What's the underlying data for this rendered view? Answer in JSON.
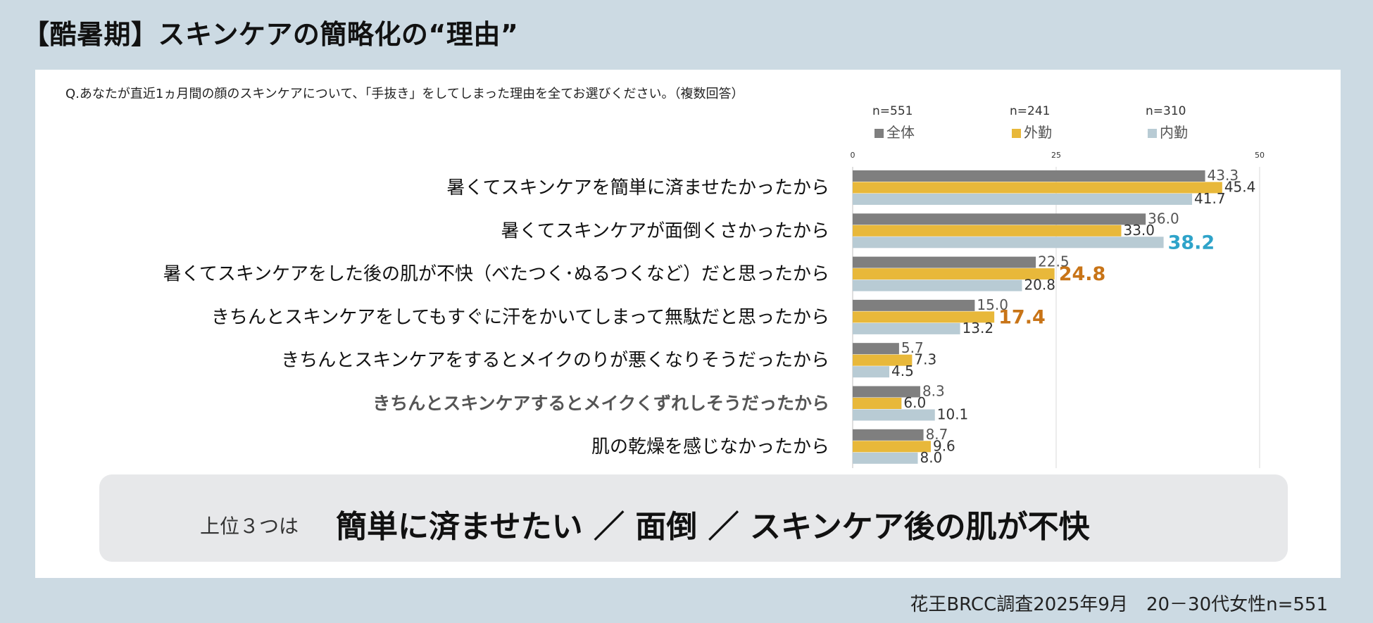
{
  "title": "【酷暑期】スキンケアの簡略化の“理由”",
  "question": "Q.あなたが直近1ヵ月間の顔のスキンケアについて、「手抜き」をしてしまった理由を全てお選びください。（複数回答）",
  "colors": {
    "all": "#7f7f7f",
    "outdoor": "#e8b83a",
    "indoor": "#b8cbd4",
    "highlight_blue": "#2ea3c9",
    "highlight_orange": "#c87417",
    "label_dark": "#111111",
    "label_grey": "#555555"
  },
  "chart_data": {
    "type": "bar",
    "orientation": "horizontal",
    "xlim": [
      0,
      50
    ],
    "xticks": [
      "0",
      "25",
      "50"
    ],
    "grid": true,
    "legend_position": "top",
    "categories": [
      "暑くてスキンケアを簡単に済ませたかったから",
      "暑くてスキンケアが面倒くさかったから",
      "暑くてスキンケアをした後の肌が不快（べたつく･ぬるつくなど）だと思ったから",
      "きちんとスキンケアをしてもすぐに汗をかいてしまって無駄だと思ったから",
      "きちんとスキンケアをするとメイクのりが悪くなりそうだったから",
      "きちんとスキンケアするとメイクくずれしそうだったから",
      "肌の乾燥を感じなかったから"
    ],
    "emphasized_category_index": 5,
    "series": [
      {
        "name": "全体",
        "n": "n=551",
        "values": [
          43.3,
          36.0,
          22.5,
          15.0,
          5.7,
          8.3,
          8.7
        ],
        "labels": [
          "43.3",
          "36.0",
          "22.5",
          "15.0",
          "5.7",
          "8.3",
          "8.7"
        ]
      },
      {
        "name": "外勤",
        "n": "n=241",
        "values": [
          45.4,
          33.0,
          24.8,
          17.4,
          7.3,
          6.0,
          9.6
        ],
        "labels": [
          "45.4",
          "33.0",
          "24.8",
          "17.4",
          "7.3",
          "6.0",
          "9.6"
        ]
      },
      {
        "name": "内勤",
        "n": "n=310",
        "values": [
          41.7,
          38.2,
          20.8,
          13.2,
          4.5,
          10.1,
          8.0
        ],
        "labels": [
          "41.7",
          "38.2",
          "20.8",
          "13.2",
          "4.5",
          "10.1",
          "8.0"
        ]
      }
    ],
    "highlighted_labels": [
      {
        "series": 2,
        "index": 1,
        "color": "blue"
      },
      {
        "series": 1,
        "index": 2,
        "color": "orange"
      },
      {
        "series": 1,
        "index": 3,
        "color": "orange"
      }
    ]
  },
  "summary": {
    "prefix": "上位３つは",
    "text": "簡単に済ませたい ／ 面倒 ／ スキンケア後の肌が不快"
  },
  "source": "花王BRCC調査2025年9月　20－30代女性n=551"
}
